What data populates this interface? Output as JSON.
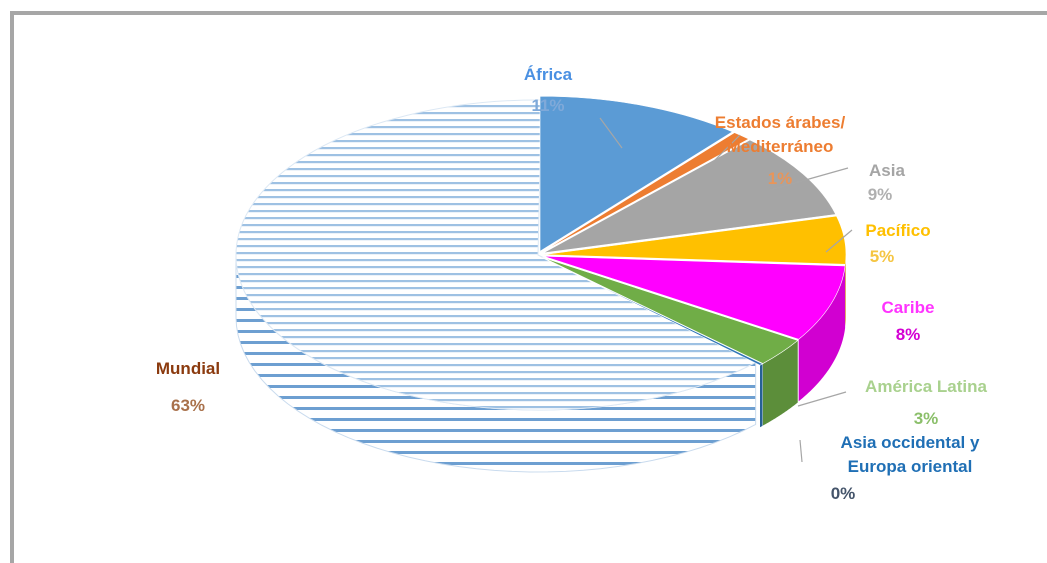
{
  "chart_data": {
    "type": "pie",
    "slices": [
      {
        "label": "África",
        "value": 11,
        "pct_label": "11%",
        "color": "#5b9bd5",
        "pct_color": "#7fa9d9"
      },
      {
        "label": "Estados árabes/ Mediterráneo",
        "label_lines": [
          "Estados árabes/",
          "Mediterráneo"
        ],
        "value": 1,
        "pct_label": "1%",
        "color": "#ed7d31",
        "pct_color": "#e8955a"
      },
      {
        "label": "Asia",
        "value": 9,
        "pct_label": "9%",
        "color": "#a5a5a5",
        "pct_color": "#b0b0b0"
      },
      {
        "label": "Pacífico",
        "value": 5,
        "pct_label": "5%",
        "color": "#ffc000",
        "pct_color": "#f5c542"
      },
      {
        "label": "Caribe",
        "value": 8,
        "pct_label": "8%",
        "color": "#ff00ff",
        "pct_color": "#d400d4"
      },
      {
        "label": "América Latina",
        "value": 3,
        "pct_label": "3%",
        "color": "#70ad47",
        "pct_color": "#8bbf6a"
      },
      {
        "label": "Asia occidental y Europa oriental",
        "label_lines": [
          "Asia occidental y",
          "Europa oriental"
        ],
        "value": 0,
        "pct_label": "0%",
        "color": "#2e75b6",
        "pct_color": "#44546a"
      },
      {
        "label": "Mundial",
        "value": 63,
        "pct_label": "63%",
        "color": "#dbe7f4",
        "pct_color": "#a9714b",
        "pattern": "horizontal-stripes"
      }
    ],
    "label_colors": {
      "África": "#4a90e2",
      "Estados árabes/ Mediterráneo": "#ed7d31",
      "Asia": "#a5a5a5",
      "Pacífico": "#ffc000",
      "Caribe": "#ff33ff",
      "América Latina": "#a9d18e",
      "Asia occidental y Europa oriental": "#1f6fb5",
      "Mundial": "#8b3a0e"
    },
    "style": "3d-exploded",
    "legend": "none"
  }
}
